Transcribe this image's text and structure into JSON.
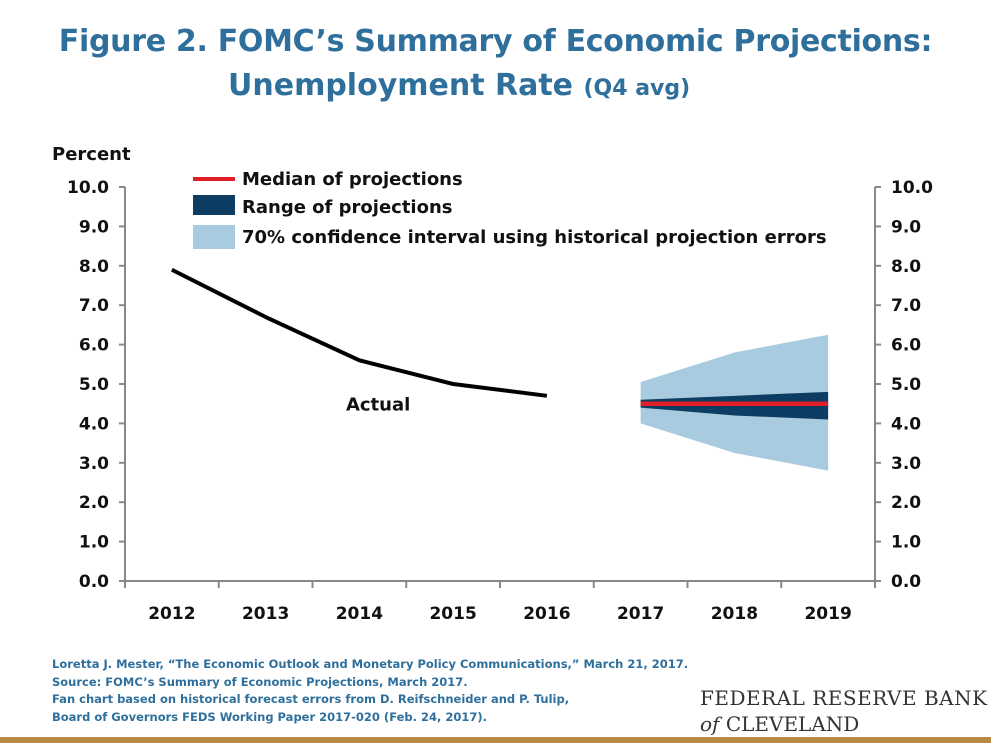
{
  "title": {
    "line1": "Figure 2. FOMC’s Summary of Economic Projections:",
    "line2_main": "Unemployment Rate",
    "line2_unit": "(Q4 avg)"
  },
  "chart_data": {
    "type": "line",
    "ylabel": "Percent",
    "ylim": [
      0,
      10
    ],
    "yticks": [
      "0.0",
      "1.0",
      "2.0",
      "3.0",
      "4.0",
      "5.0",
      "6.0",
      "7.0",
      "8.0",
      "9.0",
      "10.0"
    ],
    "categories": [
      "2012",
      "2013",
      "2014",
      "2015",
      "2016",
      "2017",
      "2018",
      "2019"
    ],
    "grid": false,
    "legend_position": "top-left",
    "series": [
      {
        "name": "Actual",
        "color": "#000000",
        "x": [
          2012,
          2013,
          2014,
          2015,
          2016
        ],
        "values": [
          7.9,
          6.7,
          5.6,
          5.0,
          4.7
        ]
      },
      {
        "name": "Median of projections",
        "color": "#e02026",
        "x": [
          2017,
          2018,
          2019
        ],
        "values": [
          4.5,
          4.5,
          4.5
        ]
      }
    ],
    "bands": [
      {
        "name": "Range of projections",
        "color": "#0d3d63",
        "x": [
          2017,
          2018,
          2019
        ],
        "low": [
          4.4,
          4.2,
          4.1
        ],
        "high": [
          4.6,
          4.7,
          4.8
        ]
      },
      {
        "name": "70% confidence interval using historical projection errors",
        "color": "#a9cbe0",
        "x": [
          2017,
          2018,
          2019
        ],
        "low": [
          4.0,
          3.25,
          2.8
        ],
        "high": [
          5.05,
          5.8,
          6.25
        ]
      }
    ],
    "annotations": [
      {
        "text": "Actual",
        "x": 2014.2,
        "y": 4.5
      }
    ]
  },
  "footnotes": [
    "Loretta J. Mester, “The Economic Outlook and Monetary Policy Communications,” March 21, 2017.",
    "Source: FOMC’s Summary of Economic Projections, March 2017.",
    "Fan chart based on historical forecast errors from D. Reifschneider and P. Tulip,",
    "Board of Governors FEDS Working Paper 2017-020 (Feb. 24, 2017)."
  ],
  "logo": {
    "line1": "FEDERAL RESERVE BANK",
    "line2_of": "of",
    "line2_city": "CLEVELAND"
  },
  "colors": {
    "title": "#2f6f9c",
    "bottom_bar": "#b98a45"
  }
}
